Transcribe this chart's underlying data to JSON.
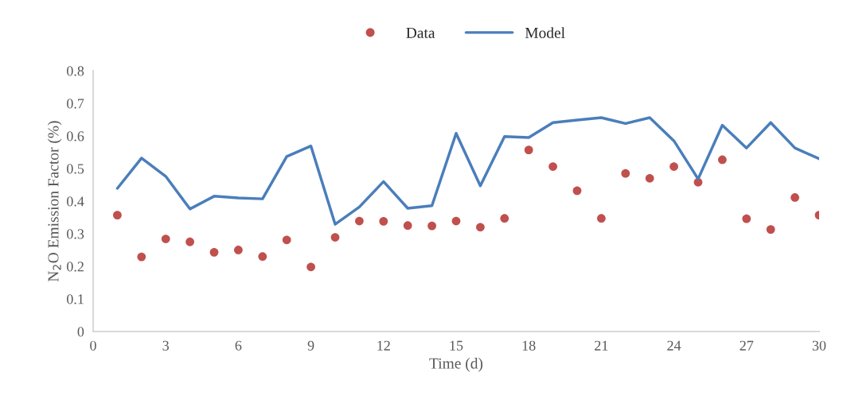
{
  "chart_data": {
    "type": "line",
    "xlabel": "Time (d)",
    "ylabel": "N$_{2}$O Emission Factor (%)",
    "xlim": [
      0,
      30
    ],
    "xticks": [
      0,
      3,
      6,
      9,
      12,
      15,
      18,
      21,
      24,
      27,
      30
    ],
    "ylim": [
      0,
      0.8
    ],
    "yticks": [
      0,
      0.1,
      0.2,
      0.3,
      0.4,
      0.5,
      0.6,
      0.7,
      0.8
    ],
    "grid": false,
    "legend": "top",
    "series": [
      {
        "name": "Data",
        "type": "scatter",
        "marker": "circle",
        "color": "#c0504d",
        "x": [
          1,
          2,
          3,
          4,
          5,
          6,
          7,
          8,
          9,
          10,
          11,
          12,
          13,
          14,
          15,
          16,
          17,
          18,
          19,
          20,
          21,
          22,
          23,
          24,
          25,
          26,
          27,
          28,
          29,
          30
        ],
        "values": [
          0.357,
          0.229,
          0.284,
          0.275,
          0.243,
          0.25,
          0.23,
          0.281,
          0.198,
          0.289,
          0.339,
          0.338,
          0.325,
          0.324,
          0.339,
          0.32,
          0.347,
          0.557,
          0.506,
          0.432,
          0.347,
          0.485,
          0.47,
          0.506,
          0.458,
          0.527,
          0.346,
          0.313,
          0.411,
          0.357
        ]
      },
      {
        "name": "Model",
        "marker": "none",
        "color": "#4a7ebb",
        "x": [
          1,
          2,
          3,
          4,
          5,
          6,
          7,
          8,
          9,
          10,
          11,
          12,
          13,
          14,
          15,
          16,
          17,
          18,
          19,
          20,
          21,
          22,
          23,
          24,
          25,
          26,
          27,
          28,
          29,
          30
        ],
        "values": [
          0.439,
          0.532,
          0.476,
          0.376,
          0.415,
          0.41,
          0.407,
          0.537,
          0.569,
          0.329,
          0.382,
          0.46,
          0.378,
          0.386,
          0.608,
          0.447,
          0.598,
          0.595,
          0.641,
          0.649,
          0.656,
          0.638,
          0.656,
          0.585,
          0.468,
          0.633,
          0.563,
          0.641,
          0.563,
          0.53
        ]
      }
    ]
  }
}
